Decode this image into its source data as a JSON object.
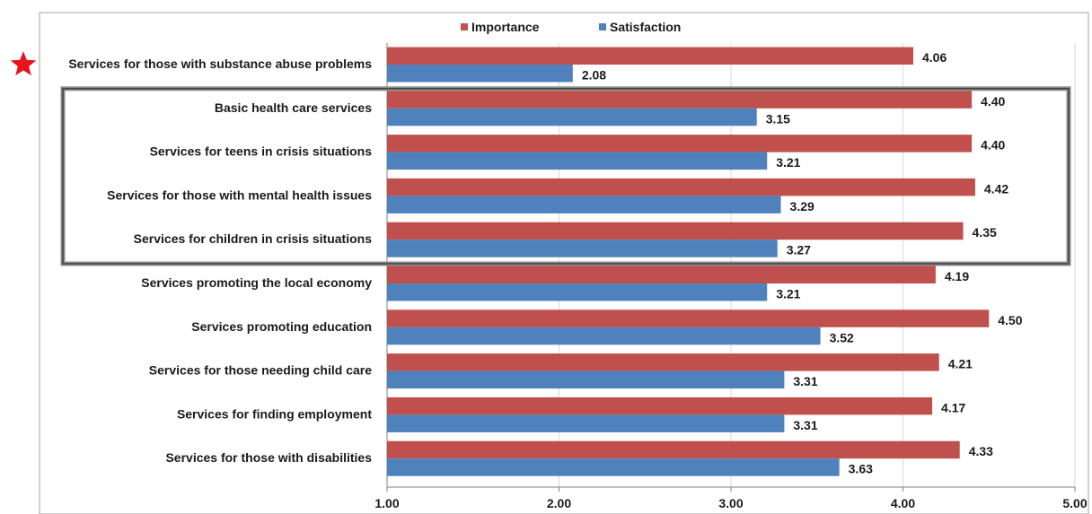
{
  "chart_data": {
    "type": "bar",
    "orientation": "horizontal",
    "categories": [
      "Services for those with substance abuse problems",
      "Basic health care services",
      "Services for teens in crisis situations",
      "Services for those with mental health issues",
      "Services for children in crisis situations",
      "Services promoting the local economy",
      "Services promoting education",
      "Services for those needing child care",
      "Services for finding employment",
      "Services for those with disabilities"
    ],
    "series": [
      {
        "name": "Importance",
        "color": "#C0504D",
        "values": [
          4.06,
          4.4,
          4.4,
          4.42,
          4.35,
          4.19,
          4.5,
          4.21,
          4.17,
          4.33
        ],
        "value_labels": [
          "4.06",
          "4.40",
          "4.40",
          "4.42",
          "4.35",
          "4.19",
          "4.50",
          "4.21",
          "4.17",
          "4.33"
        ]
      },
      {
        "name": "Satisfaction",
        "color": "#4F81BD",
        "values": [
          2.08,
          3.15,
          3.21,
          3.29,
          3.27,
          3.21,
          3.52,
          3.31,
          3.31,
          3.63
        ],
        "value_labels": [
          "2.08",
          "3.15",
          "3.21",
          "3.29",
          "3.27",
          "3.21",
          "3.52",
          "3.31",
          "3.31",
          "3.63"
        ]
      }
    ],
    "xlim": [
      1.0,
      5.0
    ],
    "x_ticks": [
      1.0,
      2.0,
      3.0,
      4.0,
      5.0
    ],
    "x_tick_labels": [
      "1.00",
      "2.00",
      "3.00",
      "4.00",
      "5.00"
    ],
    "title": "",
    "xlabel": "",
    "ylabel": "",
    "grid": true,
    "legend_position": "top-center",
    "annotations": {
      "star_marker": {
        "category_index": 0,
        "color": "#E8141C",
        "icon": "star-icon"
      },
      "highlight_box": {
        "from_category_index": 1,
        "to_category_index": 4
      }
    }
  }
}
